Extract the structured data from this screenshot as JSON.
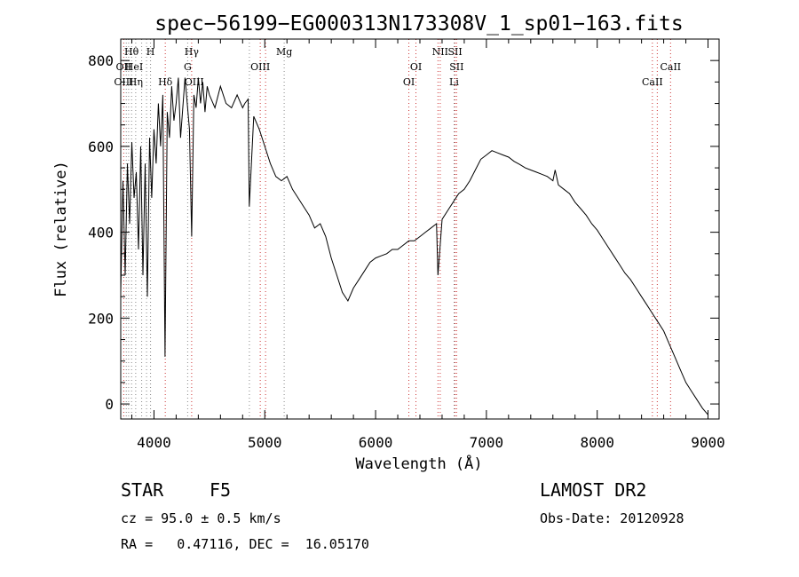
{
  "chart_data": {
    "type": "line",
    "title": "spec−56199−EG000313N173308V_1_sp01−163.fits",
    "xlabel": "Wavelength (Å)",
    "ylabel": "Flux (relative)",
    "xlim": [
      3700,
      9100
    ],
    "ylim": [
      -35,
      850
    ],
    "x_ticks": [
      4000,
      5000,
      6000,
      7000,
      8000,
      9000
    ],
    "y_ticks": [
      0,
      200,
      400,
      600,
      800
    ],
    "grid": false,
    "line_color": "#000000",
    "marker_color": "#cc3333",
    "series": [
      {
        "x": [
          3700,
          3720,
          3740,
          3760,
          3780,
          3800,
          3820,
          3840,
          3860,
          3880,
          3900,
          3920,
          3940,
          3960,
          3980,
          4000,
          4020,
          4040,
          4060,
          4080,
          4100,
          4120,
          4140,
          4160,
          4180,
          4200,
          4220,
          4240,
          4260,
          4280,
          4300,
          4320,
          4340,
          4360,
          4380,
          4400,
          4420,
          4440,
          4460,
          4480,
          4500,
          4550,
          4600,
          4650,
          4700,
          4750,
          4800,
          4820,
          4850,
          4860,
          4900,
          4950,
          5000,
          5050,
          5100,
          5150,
          5200,
          5250,
          5300,
          5350,
          5400,
          5450,
          5500,
          5550,
          5600,
          5650,
          5700,
          5750,
          5800,
          5850,
          5900,
          5950,
          6000,
          6050,
          6100,
          6150,
          6200,
          6250,
          6300,
          6350,
          6400,
          6450,
          6500,
          6550,
          6563,
          6600,
          6650,
          6700,
          6750,
          6800,
          6850,
          6900,
          6950,
          7000,
          7050,
          7100,
          7150,
          7200,
          7250,
          7300,
          7350,
          7400,
          7450,
          7500,
          7550,
          7600,
          7620,
          7650,
          7700,
          7750,
          7800,
          7850,
          7900,
          7950,
          8000,
          8050,
          8100,
          8150,
          8200,
          8250,
          8300,
          8350,
          8400,
          8450,
          8500,
          8550,
          8600,
          8650,
          8700,
          8750,
          8800,
          8850,
          8900,
          8950,
          9000
        ],
        "y": [
          260,
          520,
          300,
          560,
          420,
          610,
          480,
          540,
          360,
          600,
          300,
          560,
          250,
          620,
          480,
          640,
          560,
          700,
          600,
          720,
          110,
          680,
          620,
          740,
          660,
          700,
          760,
          620,
          690,
          760,
          700,
          640,
          390,
          720,
          690,
          760,
          700,
          750,
          680,
          740,
          720,
          690,
          740,
          700,
          690,
          720,
          690,
          700,
          710,
          460,
          670,
          640,
          600,
          560,
          530,
          520,
          530,
          500,
          480,
          460,
          440,
          410,
          420,
          390,
          340,
          300,
          260,
          240,
          270,
          290,
          310,
          330,
          340,
          345,
          350,
          360,
          360,
          370,
          380,
          380,
          390,
          400,
          410,
          420,
          300,
          430,
          450,
          470,
          490,
          500,
          520,
          545,
          570,
          580,
          590,
          585,
          580,
          575,
          565,
          558,
          550,
          545,
          540,
          535,
          530,
          520,
          545,
          510,
          500,
          490,
          470,
          455,
          440,
          420,
          405,
          385,
          365,
          345,
          325,
          305,
          290,
          270,
          250,
          230,
          210,
          190,
          170,
          140,
          110,
          80,
          50,
          30,
          10,
          -10,
          -25
        ]
      }
    ],
    "line_markers": [
      {
        "label": "Hθ",
        "wavelength": 3797,
        "row": 1
      },
      {
        "label": "OII",
        "wavelength": 3727,
        "row": 2
      },
      {
        "label": "HeI",
        "wavelength": 3820,
        "row": 2
      },
      {
        "label": "OIII",
        "wavelength": 3727,
        "row": 3
      },
      {
        "label": "Hη",
        "wavelength": 3835,
        "row": 3
      },
      {
        "label": "H",
        "wavelength": 3969,
        "row": 1
      },
      {
        "label": "Hδ",
        "wavelength": 4102,
        "row": 3
      },
      {
        "label": "Hγ",
        "wavelength": 4340,
        "row": 1
      },
      {
        "label": "G",
        "wavelength": 4304,
        "row": 2
      },
      {
        "label": "OIII",
        "wavelength": 4363,
        "row": 3
      },
      {
        "label": "OIII",
        "wavelength": 4959,
        "row": 2
      },
      {
        "label": "Mg",
        "wavelength": 5175,
        "row": 1
      },
      {
        "label": "OI",
        "wavelength": 6364,
        "row": 2
      },
      {
        "label": "OI",
        "wavelength": 6300,
        "row": 3
      },
      {
        "label": "NII",
        "wavelength": 6583,
        "row": 1
      },
      {
        "label": "SII",
        "wavelength": 6717,
        "row": 1
      },
      {
        "label": "SII",
        "wavelength": 6731,
        "row": 2
      },
      {
        "label": "Li",
        "wavelength": 6708,
        "row": 3
      },
      {
        "label": "CaII",
        "wavelength": 8662,
        "row": 2
      },
      {
        "label": "CaII",
        "wavelength": 8498,
        "row": 3
      }
    ],
    "red_marker_lines": [
      3727,
      4102,
      4340,
      4959,
      5007,
      6300,
      6364,
      6563,
      6583,
      6717,
      6731,
      8498,
      8542,
      8662
    ],
    "grey_marker_lines": [
      3750,
      3771,
      3798,
      3835,
      3889,
      3933,
      3969,
      4304,
      4861,
      5175,
      6708
    ]
  },
  "info": {
    "object_class": "STAR",
    "subclass": "F5",
    "survey": "LAMOST DR2",
    "redshift": "cz = 95.0 ± 0.5 km/s",
    "obs_date": "Obs-Date: 20120928",
    "coords": "RA =   0.47116, DEC =  16.05170"
  }
}
